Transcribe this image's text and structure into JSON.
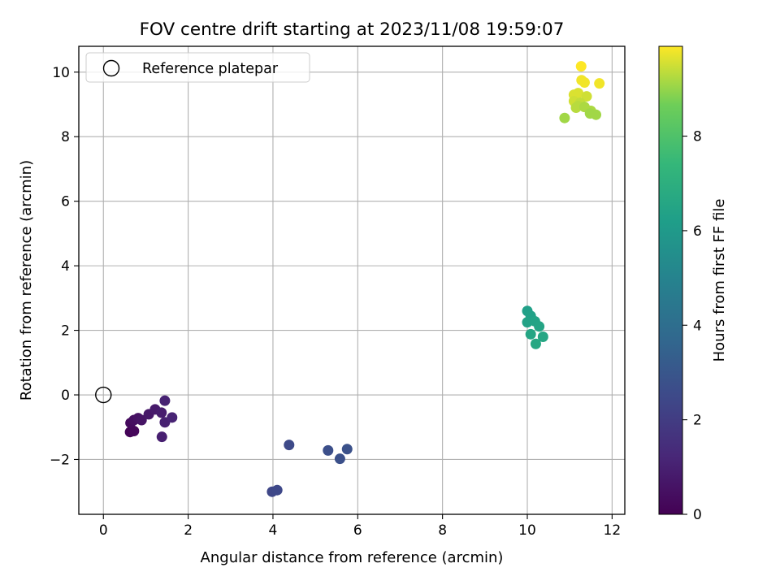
{
  "chart_data": {
    "type": "scatter",
    "title": "FOV centre drift starting at 2023/11/08 19:59:07",
    "xlabel": "Angular distance from reference (arcmin)",
    "ylabel": "Rotation from reference (arcmin)",
    "xlim": [
      -0.58,
      12.3
    ],
    "ylim": [
      -3.7,
      10.8
    ],
    "xticks": [
      0,
      2,
      4,
      6,
      8,
      10,
      12
    ],
    "yticks": [
      -2,
      0,
      2,
      4,
      6,
      8,
      10
    ],
    "xtick_labels": [
      "0",
      "2",
      "4",
      "6",
      "8",
      "10",
      "12"
    ],
    "ytick_labels": [
      "−2",
      "0",
      "2",
      "4",
      "6",
      "8",
      "10"
    ],
    "grid": true,
    "legend": {
      "placement": "top-left",
      "entries": [
        "Reference platepar"
      ]
    },
    "reference_point": {
      "x": 0,
      "y": 0
    },
    "colormap": "viridis",
    "colorbar": {
      "label": "Hours from first FF file",
      "range": [
        0,
        9.9
      ],
      "ticks": [
        0,
        2,
        4,
        6,
        8
      ],
      "tick_labels": [
        "0",
        "2",
        "4",
        "6",
        "8"
      ]
    },
    "points": [
      {
        "x": 0.63,
        "y": -1.15,
        "c": 0.1
      },
      {
        "x": 0.72,
        "y": -1.12,
        "c": 0.2
      },
      {
        "x": 0.64,
        "y": -0.87,
        "c": 0.3
      },
      {
        "x": 0.72,
        "y": -0.78,
        "c": 0.4
      },
      {
        "x": 0.82,
        "y": -0.72,
        "c": 0.5
      },
      {
        "x": 0.9,
        "y": -0.78,
        "c": 0.6
      },
      {
        "x": 1.07,
        "y": -0.6,
        "c": 0.7
      },
      {
        "x": 1.22,
        "y": -0.45,
        "c": 0.8
      },
      {
        "x": 1.37,
        "y": -0.55,
        "c": 0.9
      },
      {
        "x": 1.38,
        "y": -1.3,
        "c": 0.95
      },
      {
        "x": 1.45,
        "y": -0.85,
        "c": 1.0
      },
      {
        "x": 1.45,
        "y": -0.18,
        "c": 1.05
      },
      {
        "x": 1.62,
        "y": -0.7,
        "c": 1.1
      },
      {
        "x": 3.98,
        "y": -3.0,
        "c": 2.4
      },
      {
        "x": 4.1,
        "y": -2.95,
        "c": 2.45
      },
      {
        "x": 4.38,
        "y": -1.55,
        "c": 2.5
      },
      {
        "x": 5.3,
        "y": -1.72,
        "c": 2.7
      },
      {
        "x": 5.58,
        "y": -1.98,
        "c": 2.75
      },
      {
        "x": 5.75,
        "y": -1.68,
        "c": 2.8
      },
      {
        "x": 10.0,
        "y": 2.6,
        "c": 6.3
      },
      {
        "x": 10.08,
        "y": 2.45,
        "c": 6.35
      },
      {
        "x": 10.0,
        "y": 2.25,
        "c": 6.4
      },
      {
        "x": 10.18,
        "y": 2.28,
        "c": 6.45
      },
      {
        "x": 10.28,
        "y": 2.12,
        "c": 6.5
      },
      {
        "x": 10.08,
        "y": 1.88,
        "c": 6.55
      },
      {
        "x": 10.37,
        "y": 1.8,
        "c": 6.6
      },
      {
        "x": 10.2,
        "y": 1.58,
        "c": 6.65
      },
      {
        "x": 10.88,
        "y": 8.58,
        "c": 9.1
      },
      {
        "x": 11.27,
        "y": 10.18,
        "c": 9.9
      },
      {
        "x": 11.28,
        "y": 9.75,
        "c": 9.8
      },
      {
        "x": 11.35,
        "y": 9.68,
        "c": 9.8
      },
      {
        "x": 11.7,
        "y": 9.65,
        "c": 9.8
      },
      {
        "x": 11.1,
        "y": 9.3,
        "c": 9.6
      },
      {
        "x": 11.2,
        "y": 9.35,
        "c": 9.6
      },
      {
        "x": 11.4,
        "y": 9.25,
        "c": 9.5
      },
      {
        "x": 11.1,
        "y": 9.1,
        "c": 9.5
      },
      {
        "x": 11.25,
        "y": 9.05,
        "c": 9.4
      },
      {
        "x": 11.2,
        "y": 8.95,
        "c": 9.3
      },
      {
        "x": 11.15,
        "y": 8.9,
        "c": 9.3
      },
      {
        "x": 11.35,
        "y": 8.92,
        "c": 9.2
      },
      {
        "x": 11.5,
        "y": 8.8,
        "c": 9.2
      },
      {
        "x": 11.48,
        "y": 8.72,
        "c": 9.1
      },
      {
        "x": 11.62,
        "y": 8.68,
        "c": 9.1
      }
    ]
  }
}
